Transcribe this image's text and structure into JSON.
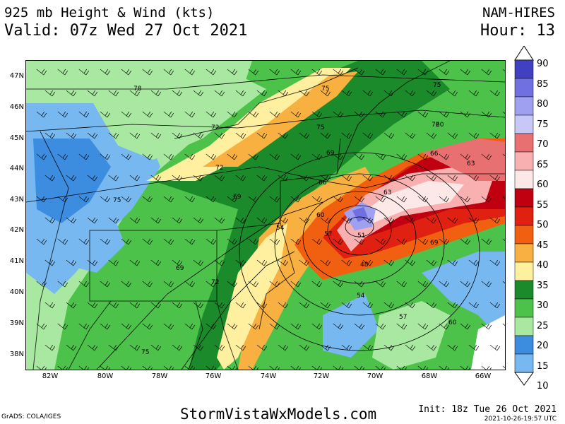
{
  "header": {
    "title": "925 mb Height & Wind (kts)",
    "valid": "Valid: 07z Wed 27 Oct 2021",
    "model": "NAM-HIRES",
    "hour": "Hour: 13"
  },
  "axes": {
    "lat_labels": [
      "47N",
      "46N",
      "45N",
      "44N",
      "43N",
      "42N",
      "41N",
      "40N",
      "39N",
      "38N"
    ],
    "lon_labels": [
      "82W",
      "80W",
      "78W",
      "76W",
      "74W",
      "72W",
      "70W",
      "68W",
      "66W"
    ]
  },
  "height_contours": [
    "78",
    "75",
    "75",
    "72",
    "75",
    "72",
    "69",
    "72",
    "75",
    "69",
    "66",
    "63",
    "60",
    "57",
    "54",
    "51",
    "48",
    "54",
    "57",
    "60",
    "63",
    "66",
    "69",
    "69",
    "72",
    "75",
    "60"
  ],
  "colorbar": {
    "labels": [
      "90",
      "85",
      "80",
      "75",
      "70",
      "65",
      "60",
      "55",
      "50",
      "45",
      "40",
      "35",
      "30",
      "25",
      "20",
      "15",
      "10"
    ],
    "colors": [
      "#4040c0",
      "#7070e0",
      "#a0a0f0",
      "#c8c8f8",
      "#e87070",
      "#f8b0b0",
      "#fde8e8",
      "#c00010",
      "#e02010",
      "#f06010",
      "#f8b040",
      "#fff0a0",
      "#1a8a2a",
      "#4cc24a",
      "#a8e8a0",
      "#3c8ce0",
      "#78b8f0"
    ]
  },
  "footer": {
    "grads": "GrADS: COLA/IGES",
    "site": "StormVistaWxModels.com",
    "init": "Init: 18z Tue 26 Oct 2021",
    "stamp": "2021-10-26-19:57 UTC"
  }
}
